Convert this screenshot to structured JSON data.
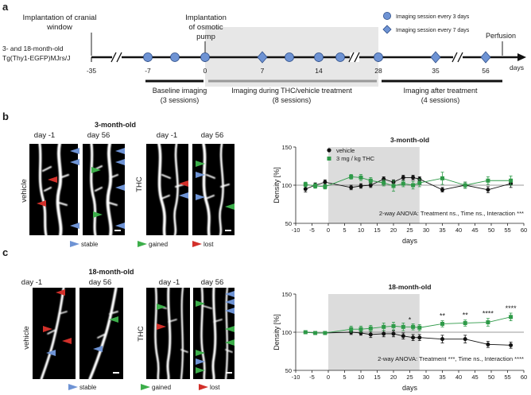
{
  "colors": {
    "accent_circle": "#6e93d4",
    "vehicle": "#111111",
    "thc": "#2e9a48",
    "stable": "#6e93d4",
    "gained": "#3cae4a",
    "lost": "#d2302a",
    "shade": "#dcdcdc"
  },
  "panel_a": {
    "label": "a",
    "mouse_line1": "3- and 18-month-old",
    "mouse_line2": "Tg(Thy1-EGFP)MJrs/J",
    "cranial_line1": "Implantation of cranial",
    "cranial_line2": "window",
    "pump_line1": "Implantation",
    "pump_line2": "of osmotic",
    "pump_line3": "pump",
    "legend_3days": "Imaging session every 3 days",
    "legend_7days": "Imaging session every 7 days",
    "perfusion": "Perfusion",
    "days": "days",
    "ticks": [
      "-35",
      "-7",
      "0",
      "7",
      "14",
      "28",
      "35",
      "56"
    ],
    "baseline_line1": "Baseline imaging",
    "baseline_line2": "(3 sessions)",
    "during_line1": "Imaging during THC/vehicle treatment",
    "during_line2": "(8 sessions)",
    "after_line1": "Imaging after treatment",
    "after_line2": "(4 sessions)"
  },
  "panel_b": {
    "label": "b",
    "title": "3-month-old",
    "day_before": "day -1",
    "day_after": "day 56",
    "vehicle": "vehicle",
    "thc": "THC",
    "stable": "stable",
    "gained": "gained",
    "lost": "lost",
    "legend_vehicle": "vehicle",
    "legend_thc": "3 mg / kg THC",
    "stats": "2-way ANOVA: Treatment ns., Time ns., Interaction ***"
  },
  "panel_c": {
    "label": "c",
    "title": "18-month-old",
    "day_before": "day -1",
    "day_after": "day 56",
    "vehicle": "vehicle",
    "thc": "THC",
    "stable": "stable",
    "gained": "gained",
    "lost": "lost",
    "stats": "2-way ANOVA: Treatment ***, Time ns., Interaction ****"
  },
  "chart_data": [
    {
      "type": "line",
      "title": "3-month-old",
      "xlabel": "days",
      "ylabel": "Density [%]",
      "xlim": [
        -10,
        60
      ],
      "ylim": [
        50,
        150
      ],
      "xticks": [
        -10,
        -5,
        0,
        5,
        10,
        15,
        20,
        25,
        30,
        35,
        40,
        45,
        50,
        55,
        60
      ],
      "yticks": [
        50,
        100,
        150
      ],
      "shaded_x": [
        0,
        28
      ],
      "series": [
        {
          "name": "vehicle",
          "x": [
            -7,
            -4,
            -1,
            7,
            10,
            13,
            17,
            20,
            23,
            26,
            28,
            35,
            42,
            49,
            56
          ],
          "y": [
            95,
            100,
            104,
            97,
            99,
            100,
            108,
            104,
            110,
            110,
            108,
            94,
            100,
            94,
            102
          ],
          "err": [
            4,
            3,
            3,
            3,
            3,
            3,
            3,
            3,
            3,
            3,
            3,
            3,
            4,
            4,
            5
          ]
        },
        {
          "name": "3 mg / kg THC",
          "x": [
            -7,
            -4,
            -1,
            7,
            10,
            13,
            17,
            20,
            23,
            26,
            28,
            35,
            42,
            49,
            56
          ],
          "y": [
            101,
            99,
            98,
            111,
            110,
            106,
            103,
            99,
            102,
            100,
            103,
            109,
            100,
            106,
            106
          ],
          "err": [
            3,
            3,
            3,
            3,
            4,
            4,
            4,
            7,
            4,
            5,
            5,
            8,
            4,
            5,
            6
          ]
        }
      ],
      "annotations": []
    },
    {
      "type": "line",
      "title": "18-month-old",
      "xlabel": "days",
      "ylabel": "Density [%]",
      "xlim": [
        -10,
        60
      ],
      "ylim": [
        50,
        150
      ],
      "xticks": [
        -10,
        -5,
        0,
        5,
        10,
        15,
        20,
        25,
        30,
        35,
        40,
        45,
        50,
        55,
        60
      ],
      "yticks": [
        50,
        100,
        150
      ],
      "shaded_x": [
        0,
        28
      ],
      "series": [
        {
          "name": "vehicle",
          "x": [
            -7,
            -4,
            -1,
            7,
            10,
            13,
            17,
            20,
            23,
            26,
            28,
            35,
            42,
            49,
            56
          ],
          "y": [
            100,
            99,
            99,
            100,
            99,
            97,
            98,
            98,
            95,
            93,
            93,
            91,
            91,
            84,
            83
          ],
          "err": [
            2,
            2,
            2,
            3,
            3,
            4,
            4,
            4,
            4,
            4,
            4,
            5,
            5,
            4,
            4
          ]
        },
        {
          "name": "3 mg / kg THC",
          "x": [
            -7,
            -4,
            -1,
            7,
            10,
            13,
            17,
            20,
            23,
            26,
            28,
            35,
            42,
            49,
            56
          ],
          "y": [
            100,
            99,
            99,
            104,
            104,
            105,
            107,
            108,
            107,
            107,
            106,
            111,
            112,
            113,
            120
          ],
          "err": [
            2,
            2,
            2,
            4,
            4,
            4,
            5,
            5,
            5,
            4,
            4,
            4,
            4,
            5,
            5
          ]
        }
      ],
      "annotations": [
        {
          "x": 25,
          "text": "*"
        },
        {
          "x": 35,
          "text": "**"
        },
        {
          "x": 42,
          "text": "**"
        },
        {
          "x": 49,
          "text": "****"
        },
        {
          "x": 56,
          "text": "****"
        }
      ]
    }
  ]
}
